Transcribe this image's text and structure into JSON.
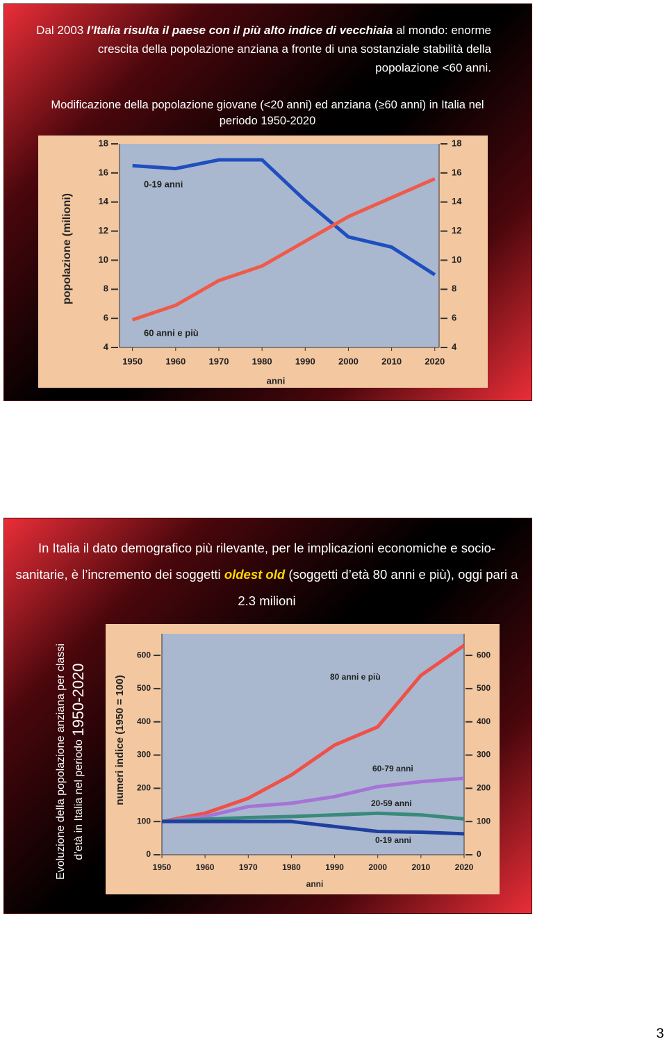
{
  "slides": [
    {
      "intro": "Dal 2003",
      "emphasis": "l’Italia risulta il paese con il più alto indice di vecchiaia",
      "rest": "al mondo: enorme crescita della popolazione anziana a fronte di una sostanziale stabilità della popolazione <60 anni."
    },
    {
      "intro": "In Italia il dato demografico più rilevante, per le implicazioni economiche e socio-sanitarie, è l’incremento dei soggetti",
      "emphasis": "oldest old",
      "rest": "(soggetti  d’età 80 anni e più), oggi pari a 2.3 milioni",
      "caption": [
        "Evoluzione della popolazione anziana per classi",
        "d’età in Italia nel periodo",
        "1950-2020"
      ]
    }
  ],
  "chart_data": [
    {
      "type": "line",
      "title": "Modificazione della popolazione giovane (<20 anni) ed anziana (≥60 anni) in Italia nel periodo 1950-2020",
      "x_label": "anni",
      "y_label": "popolazione (milioni)",
      "x": [
        1950,
        1960,
        1970,
        1980,
        1990,
        2000,
        2010,
        2020
      ],
      "series": [
        {
          "name": "0-19 anni",
          "color": "#1f4fbf",
          "values": [
            16.5,
            16.3,
            16.9,
            16.9,
            14.1,
            11.6,
            10.9,
            9.0
          ]
        },
        {
          "name": "60 anni e più",
          "color": "#ef5a4a",
          "values": [
            5.9,
            6.9,
            8.6,
            9.6,
            11.3,
            13.0,
            14.3,
            15.6
          ]
        }
      ],
      "xlim": [
        1947,
        2021
      ],
      "xticks": [
        1950,
        1960,
        1970,
        1980,
        1990,
        2000,
        2010,
        2020
      ],
      "ylim": [
        4,
        18
      ],
      "yticks": [
        4,
        6,
        8,
        10,
        12,
        14,
        16,
        18
      ],
      "y2lim": [
        4,
        18
      ],
      "y2ticks": [
        4,
        6,
        8,
        10,
        12,
        14,
        16,
        18
      ]
    },
    {
      "type": "line",
      "x_label": "anni",
      "y_label": "numeri  indice (1950 = 100)",
      "x": [
        1950,
        1960,
        1970,
        1980,
        1990,
        2000,
        2010,
        2020
      ],
      "series": [
        {
          "name": "80 anni e più",
          "color": "#ef5048",
          "values": [
            100,
            125,
            170,
            240,
            330,
            385,
            540,
            630
          ]
        },
        {
          "name": "60-79 anni",
          "color": "#a574d6",
          "values": [
            100,
            115,
            145,
            155,
            175,
            205,
            220,
            230
          ]
        },
        {
          "name": "20-59 anni",
          "color": "#3a8a7c",
          "values": [
            100,
            107,
            112,
            115,
            120,
            125,
            120,
            108
          ]
        },
        {
          "name": "0-19 anni",
          "color": "#1f3f9f",
          "values": [
            100,
            100,
            100,
            100,
            85,
            70,
            68,
            63
          ]
        }
      ],
      "xlim": [
        1950,
        2020
      ],
      "xticks": [
        1950,
        1960,
        1970,
        1980,
        1990,
        2000,
        2010,
        2020
      ],
      "ylim": [
        0,
        665
      ],
      "yticks": [
        0,
        100,
        200,
        300,
        400,
        500,
        600
      ],
      "y2lim": [
        0,
        665
      ],
      "y2ticks": [
        0,
        100,
        200,
        300,
        400,
        500,
        600
      ]
    }
  ],
  "page_number": "3"
}
